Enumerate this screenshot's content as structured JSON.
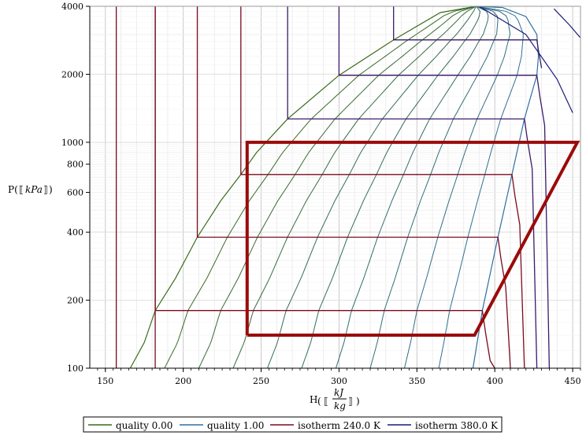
{
  "chart_data": {
    "type": "line",
    "title": "",
    "xlabel": "H( kJ/kg )",
    "ylabel": "P( kPa )",
    "x_unit_num": "kJ",
    "x_unit_den": "kg",
    "y_unit": "kPa",
    "xlim": [
      140,
      455
    ],
    "ylim": [
      100,
      4000
    ],
    "y_scale": "log",
    "grid": true,
    "x_ticks": [
      "150",
      "200",
      "250",
      "300",
      "350",
      "400",
      "450"
    ],
    "y_ticks": [
      "100",
      "200",
      "400",
      "600",
      "800",
      "1000",
      "2000",
      "4000"
    ],
    "legend_position": "bottom",
    "legend": [
      {
        "label": "quality 0.00",
        "color": "#3a6b1a"
      },
      {
        "label": "quality 1.00",
        "color": "#2f6f9f"
      },
      {
        "label": "isotherm 240.0 K",
        "color": "#7a0a20"
      },
      {
        "label": "isotherm 380.0 K",
        "color": "#1a1a7a"
      }
    ],
    "dome": {
      "saturated_liquid": [
        [
          166,
          100
        ],
        [
          175,
          130
        ],
        [
          182,
          180
        ],
        [
          195,
          250
        ],
        [
          209,
          380
        ],
        [
          224,
          550
        ],
        [
          237,
          720
        ],
        [
          247,
          900
        ],
        [
          267,
          1270
        ],
        [
          300,
          1980
        ],
        [
          335,
          2840
        ],
        [
          365,
          3750
        ],
        [
          388,
          4000
        ]
      ],
      "saturated_vapor": [
        [
          388,
          4000
        ],
        [
          405,
          3950
        ],
        [
          420,
          3600
        ],
        [
          427,
          3000
        ],
        [
          428,
          2400
        ],
        [
          427,
          1980
        ],
        [
          422,
          1500
        ],
        [
          419,
          1270
        ],
        [
          411,
          720
        ],
        [
          402,
          380
        ],
        [
          392,
          180
        ],
        [
          386,
          100
        ]
      ]
    },
    "quality_lines": [
      0.1,
      0.2,
      0.3,
      0.4,
      0.5,
      0.6,
      0.7,
      0.8,
      0.9
    ],
    "isotherms": [
      {
        "p_sat": 180,
        "h_liq": 182,
        "h_vap": 392
      },
      {
        "p_sat": 380,
        "h_liq": 209,
        "h_vap": 402
      },
      {
        "p_sat": 720,
        "h_liq": 237,
        "h_vap": 411
      },
      {
        "p_sat": 1270,
        "h_liq": 267,
        "h_vap": 419
      },
      {
        "p_sat": 1980,
        "h_liq": 300,
        "h_vap": 427
      },
      {
        "p_sat": 2840,
        "h_liq": 335,
        "h_vap": 427
      }
    ],
    "liquid_isotherms_h": [
      157,
      182
    ],
    "cycle": [
      [
        241,
        140
      ],
      [
        387,
        140
      ],
      [
        453,
        1000
      ],
      [
        241,
        1000
      ],
      [
        241,
        140
      ]
    ]
  }
}
